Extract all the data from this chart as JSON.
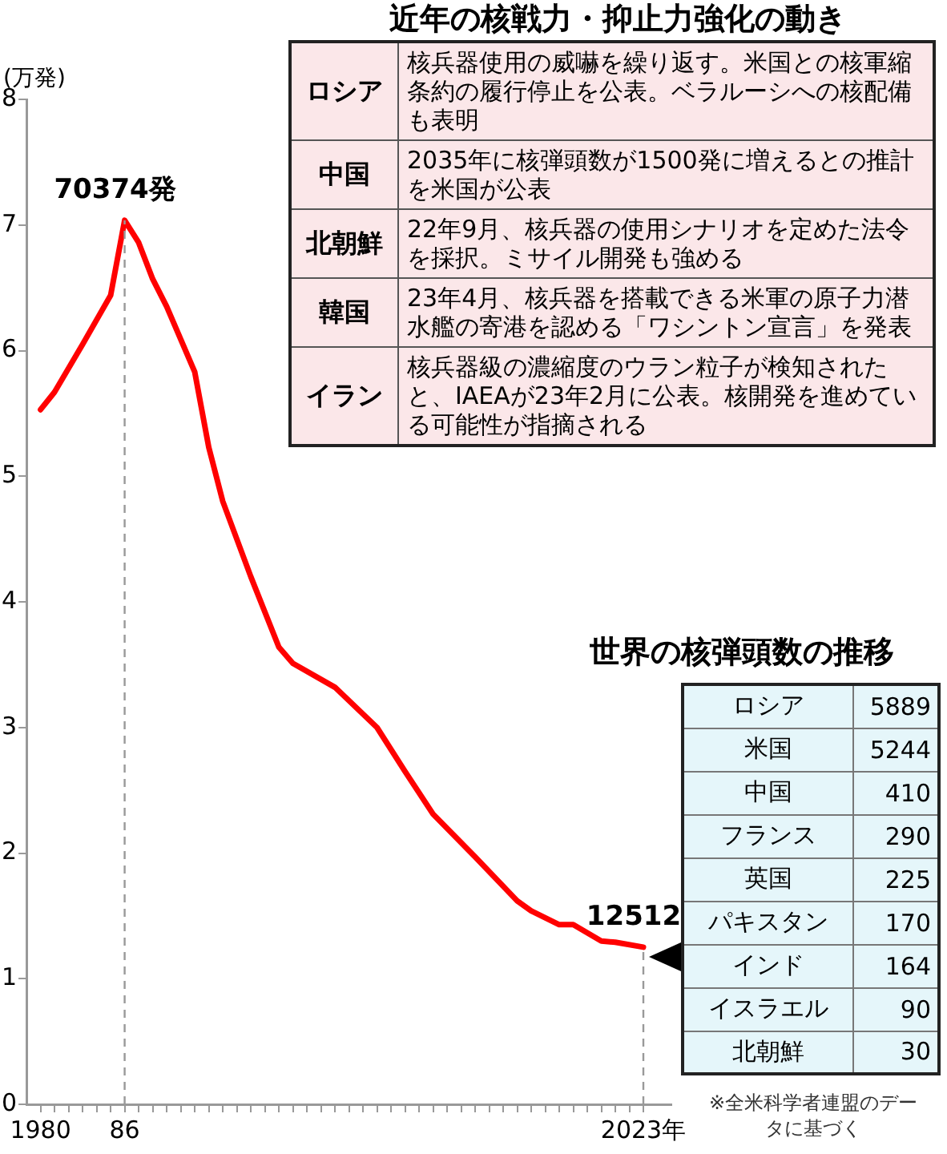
{
  "chart_data": [
    {
      "type": "line",
      "title": "世界の核弾頭数の推移",
      "ylabel": "(万発)",
      "color": "#ff0000",
      "marker": "none",
      "grid": false,
      "x": [
        1980,
        1981,
        1983,
        1985,
        1986,
        1987,
        1988,
        1989,
        1991,
        1992,
        1993,
        1995,
        1997,
        1998,
        2001,
        2004,
        2006,
        2008,
        2011,
        2014,
        2015,
        2017,
        2018,
        2020,
        2021,
        2023
      ],
      "values": [
        5.53,
        5.67,
        6.05,
        6.44,
        7.0374,
        6.86,
        6.57,
        6.35,
        5.83,
        5.23,
        4.8,
        4.2,
        3.64,
        3.51,
        3.32,
        3.0,
        2.65,
        2.31,
        1.97,
        1.62,
        1.54,
        1.43,
        1.43,
        1.3,
        1.29,
        1.2512
      ],
      "xlim": [
        1979,
        2025
      ],
      "xticks": [
        {
          "value": 1980,
          "label": "1980"
        },
        {
          "value": 1981,
          "label": null
        },
        {
          "value": 1982,
          "label": null
        },
        {
          "value": 1983,
          "label": null
        },
        {
          "value": 1984,
          "label": null
        },
        {
          "value": 1985,
          "label": null
        },
        {
          "value": 1986,
          "label": "86"
        },
        {
          "value": 1987,
          "label": null
        },
        {
          "value": 1988,
          "label": null
        },
        {
          "value": 1989,
          "label": null
        },
        {
          "value": 1990,
          "label": null
        },
        {
          "value": 1991,
          "label": null
        },
        {
          "value": 1992,
          "label": null
        },
        {
          "value": 1993,
          "label": null
        },
        {
          "value": 1994,
          "label": null
        },
        {
          "value": 1995,
          "label": null
        },
        {
          "value": 1996,
          "label": null
        },
        {
          "value": 1997,
          "label": null
        },
        {
          "value": 1998,
          "label": null
        },
        {
          "value": 1999,
          "label": null
        },
        {
          "value": 2000,
          "label": null
        },
        {
          "value": 2001,
          "label": null
        },
        {
          "value": 2002,
          "label": null
        },
        {
          "value": 2003,
          "label": null
        },
        {
          "value": 2004,
          "label": null
        },
        {
          "value": 2005,
          "label": null
        },
        {
          "value": 2006,
          "label": null
        },
        {
          "value": 2007,
          "label": null
        },
        {
          "value": 2008,
          "label": null
        },
        {
          "value": 2009,
          "label": null
        },
        {
          "value": 2010,
          "label": null
        },
        {
          "value": 2011,
          "label": null
        },
        {
          "value": 2012,
          "label": null
        },
        {
          "value": 2013,
          "label": null
        },
        {
          "value": 2014,
          "label": null
        },
        {
          "value": 2015,
          "label": null
        },
        {
          "value": 2016,
          "label": null
        },
        {
          "value": 2017,
          "label": null
        },
        {
          "value": 2018,
          "label": null
        },
        {
          "value": 2019,
          "label": null
        },
        {
          "value": 2020,
          "label": null
        },
        {
          "value": 2021,
          "label": null
        },
        {
          "value": 2022,
          "label": null
        },
        {
          "value": 2023,
          "label": "2023年"
        }
      ],
      "ylim": [
        0,
        8
      ],
      "yticks": [
        0,
        1,
        2,
        3,
        4,
        5,
        6,
        7,
        8
      ],
      "ref_lines": [
        {
          "axis": "x",
          "value": 1986,
          "line_style": "dashed",
          "color": "#999999"
        },
        {
          "axis": "x",
          "value": 2023,
          "line_style": "dashed",
          "color": "#999999"
        }
      ],
      "annotations": [
        {
          "text": "70374発",
          "x": 1986,
          "y": 7.0374
        },
        {
          "text": "12512",
          "x": 2023,
          "y": 1.2512
        },
        "※全米科学者連盟のデータに基づく"
      ]
    },
    {
      "type": "other",
      "title": "近年の核戦力・抑止力強化の動き",
      "categories": [
        "ロシア",
        "中国",
        "北朝鮮",
        "韓国",
        "イラン"
      ],
      "annotations": [
        "核兵器使用の威嚇を繰り返す。米国との核軍縮条約の履行停止を公表。ベラルーシへの核配備も表明",
        "2035年に核弾頭数が1500発に増えるとの推計を米国が公表",
        "22年9月、核兵器の使用シナリオを定めた法令を採択。ミサイル開発も強める",
        "23年4月、核兵器を搭載できる米軍の原子力潜水艦の寄港を認める「ワシントン宣言」を発表",
        "核兵器級の濃縮度のウラン粒子が検知されたと、IAEAが23年2月に公表。核開発を進めている可能性が指摘される"
      ]
    },
    {
      "type": "other",
      "data_labels": true,
      "categories": [
        "ロシア",
        "米国",
        "中国",
        "フランス",
        "英国",
        "パキスタン",
        "インド",
        "イスラエル",
        "北朝鮮"
      ],
      "values": [
        5889,
        5244,
        410,
        290,
        225,
        170,
        164,
        90,
        30
      ]
    }
  ]
}
